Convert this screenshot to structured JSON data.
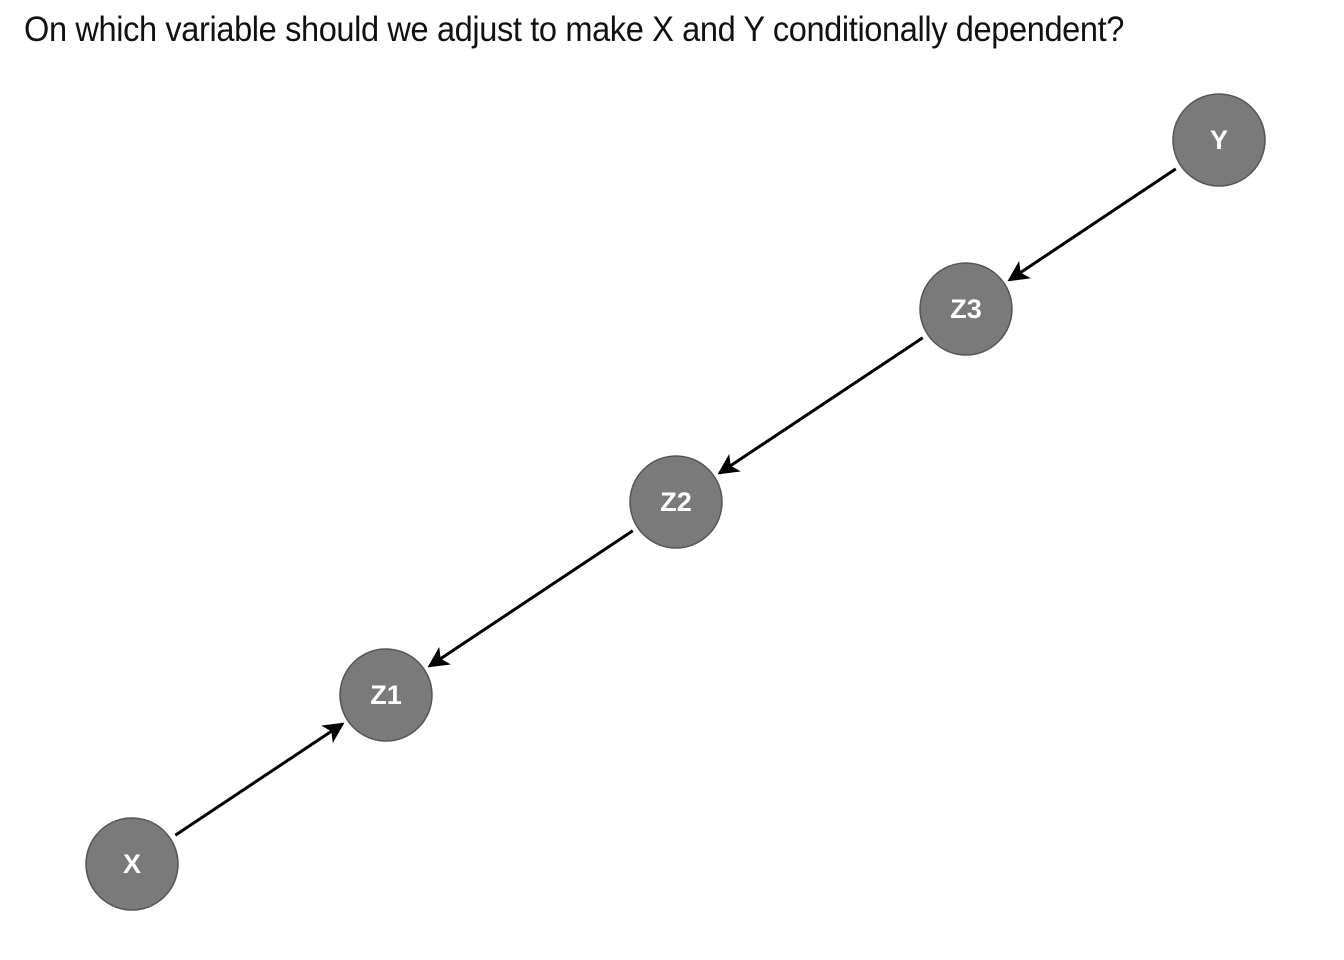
{
  "question": "On which variable should we adjust to make X and Y conditionally dependent?",
  "colors": {
    "node_fill": "#7a7a7a",
    "node_stroke": "#555555",
    "node_text": "#ffffff",
    "edge": "#000000"
  },
  "nodes": [
    {
      "id": "X",
      "label": "X"
    },
    {
      "id": "Z1",
      "label": "Z1"
    },
    {
      "id": "Z2",
      "label": "Z2"
    },
    {
      "id": "Z3",
      "label": "Z3"
    },
    {
      "id": "Y",
      "label": "Y"
    }
  ],
  "edges": [
    {
      "from": "X",
      "to": "Z1"
    },
    {
      "from": "Z2",
      "to": "Z1"
    },
    {
      "from": "Z3",
      "to": "Z2"
    },
    {
      "from": "Y",
      "to": "Z3"
    }
  ]
}
